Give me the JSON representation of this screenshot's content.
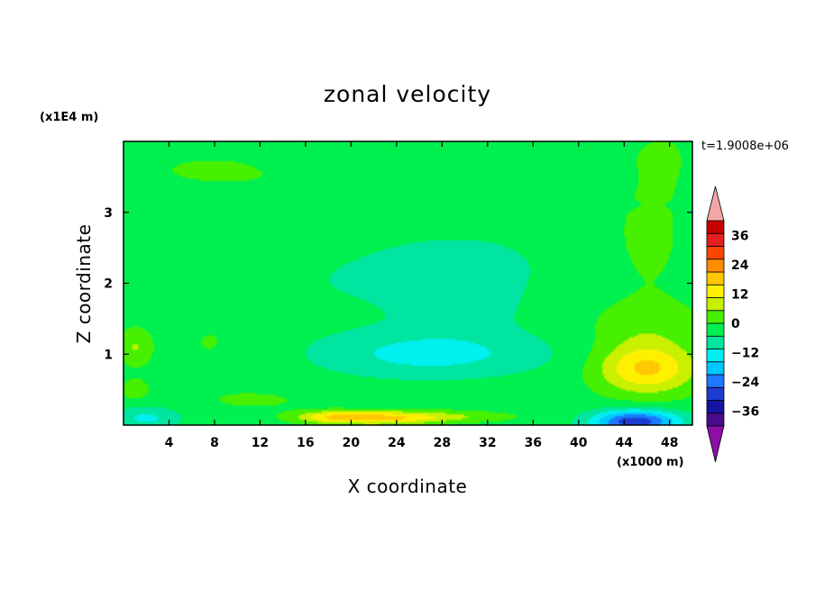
{
  "chart_data": {
    "type": "heatmap",
    "title": "zonal velocity",
    "xlabel": "X coordinate",
    "ylabel": "Z coordinate",
    "x_unit": "(x1000 m)",
    "y_unit": "(x1E4 m)",
    "time_stamp": "t=1.9008e+06",
    "xlim": [
      0,
      50
    ],
    "ylim": [
      0,
      4
    ],
    "x_ticks": [
      4,
      8,
      12,
      16,
      20,
      24,
      28,
      32,
      36,
      40,
      44,
      48
    ],
    "x_tick_labels": [
      "4",
      "8",
      "12",
      "16",
      "20",
      "24",
      "28",
      "32",
      "36",
      "40",
      "44",
      "48"
    ],
    "y_ticks": [
      1,
      2,
      3
    ],
    "y_tick_labels": [
      "1",
      "2",
      "3"
    ],
    "colorbar": {
      "levels": [
        -42,
        -36,
        -30,
        -24,
        -18,
        -12,
        -6,
        0,
        6,
        12,
        18,
        24,
        30,
        36,
        42
      ],
      "colors": [
        "#4b0a8c",
        "#1414a0",
        "#1e3cd2",
        "#1e78ff",
        "#00c8ff",
        "#00f0f0",
        "#00e6a0",
        "#00f050",
        "#46f000",
        "#c8f000",
        "#fff000",
        "#ffc800",
        "#ff8c00",
        "#ff4600",
        "#e61e1e",
        "#c80000"
      ],
      "labels": [
        36,
        24,
        12,
        0,
        -12,
        -24,
        -36
      ],
      "label_text": [
        "36",
        "24",
        "12",
        "0",
        "−12",
        "−24",
        "−36"
      ],
      "over_color": "#f4a6a6",
      "under_color": "#8b0fa8",
      "extend": "both"
    },
    "features": [
      {
        "x": 22,
        "z": 0.1,
        "value": 20
      },
      {
        "x": 18,
        "z": 0.12,
        "value": 18
      },
      {
        "x": 28,
        "z": 0.12,
        "value": 12
      },
      {
        "x": 46,
        "z": 0.8,
        "value": 22
      },
      {
        "x": 45,
        "z": 0.05,
        "value": -32
      },
      {
        "x": 2,
        "z": 0.1,
        "value": -12
      },
      {
        "x": 27,
        "z": 1.0,
        "value": -14
      },
      {
        "x": 30,
        "z": 1.6,
        "value": -7
      },
      {
        "x": 1,
        "z": 1.1,
        "value": 12
      },
      {
        "x": 1,
        "z": 0.5,
        "value": 12
      },
      {
        "x": 12,
        "z": 3.1,
        "value": -3
      },
      {
        "x": 46,
        "z": 1.4,
        "value": 8
      }
    ]
  }
}
